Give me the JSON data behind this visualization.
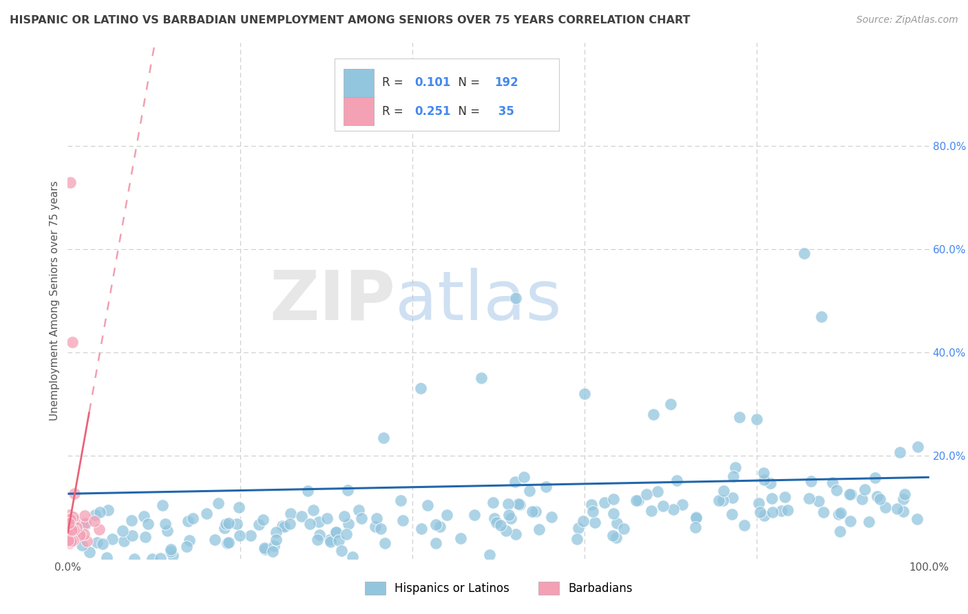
{
  "title": "HISPANIC OR LATINO VS BARBADIAN UNEMPLOYMENT AMONG SENIORS OVER 75 YEARS CORRELATION CHART",
  "source": "Source: ZipAtlas.com",
  "ylabel": "Unemployment Among Seniors over 75 years",
  "xlim": [
    0,
    1.0
  ],
  "ylim": [
    0,
    1.0
  ],
  "blue_color": "#92C5DE",
  "pink_color": "#F4A0B5",
  "blue_line_color": "#2166AC",
  "pink_line_color": "#E8647A",
  "pink_dash_color": "#F0A0B0",
  "blue_R": 0.101,
  "blue_N": 192,
  "pink_R": 0.251,
  "pink_N": 35,
  "legend_label_blue": "Hispanics or Latinos",
  "legend_label_pink": "Barbadians",
  "background_color": "#ffffff",
  "grid_color": "#cccccc",
  "title_color": "#404040",
  "source_color": "#999999",
  "stat_color": "#4488ee",
  "watermark_zip_color": "#cccccc",
  "watermark_atlas_color": "#aaccee"
}
